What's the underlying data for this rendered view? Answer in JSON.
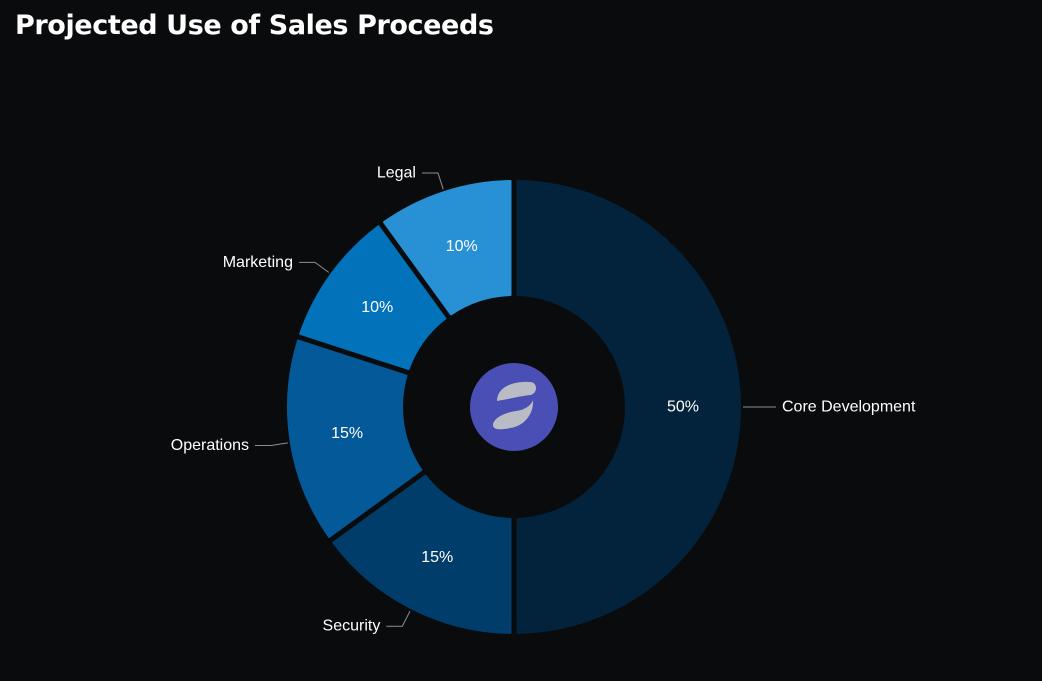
{
  "title": "Projected Use of Sales Proceeds",
  "center_logo": {
    "icon": "token-logo-icon",
    "background_color": "#4a4fb5",
    "mark_color": "#b9bcc4"
  },
  "chart_data": {
    "type": "pie",
    "variant": "donut",
    "title": "Projected Use of Sales Proceeds",
    "unit": "%",
    "start_angle_deg": 0,
    "direction": "clockwise",
    "slices": [
      {
        "label": "Core Development",
        "value": 50,
        "value_label": "50%",
        "color": "#03233c"
      },
      {
        "label": "Security",
        "value": 15,
        "value_label": "15%",
        "color": "#013d6a"
      },
      {
        "label": "Operations",
        "value": 15,
        "value_label": "15%",
        "color": "#045998"
      },
      {
        "label": "Marketing",
        "value": 10,
        "value_label": "10%",
        "color": "#0272bb"
      },
      {
        "label": "Legal",
        "value": 10,
        "value_label": "10%",
        "color": "#2890d4"
      }
    ]
  }
}
